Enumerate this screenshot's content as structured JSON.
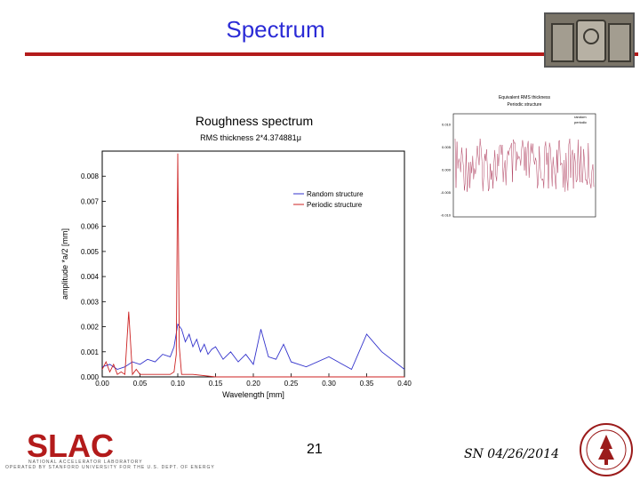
{
  "slide": {
    "title": "Spectrum",
    "page_number": "21",
    "date": "SN 04/26/2014",
    "logo_text": "SLAC",
    "logo_subtitle": "NATIONAL ACCELERATOR LABORATORY",
    "logo_subtitle2": "OPERATED BY STANFORD UNIVERSITY FOR THE U.S. DEPT. OF ENERGY"
  },
  "colors": {
    "title": "#2b2bd6",
    "rule": "#b31b1b",
    "random": "#3333cc",
    "periodic": "#cc2222",
    "slac": "#b31b1b"
  },
  "chart_data": [
    {
      "type": "line",
      "title": "Roughness spectrum",
      "subtitle": "RMS thickness 2*4.374881μ",
      "xlabel": "Wavelength [mm]",
      "ylabel": "amplitude *a/2 [mm]",
      "xlim": [
        0.0,
        0.4
      ],
      "ylim": [
        0.0,
        0.009
      ],
      "x_ticks": [
        "0.00",
        "0.05",
        "0.10",
        "0.15",
        "0.20",
        "0.25",
        "0.30",
        "0.35",
        "0.40"
      ],
      "y_ticks": [
        "0.000",
        "0.001",
        "0.002",
        "0.003",
        "0.004",
        "0.005",
        "0.006",
        "0.007",
        "0.008"
      ],
      "legend_position": "right",
      "series": [
        {
          "name": "Random structure",
          "color": "#3333cc",
          "x": [
            0.0,
            0.01,
            0.02,
            0.03,
            0.04,
            0.05,
            0.06,
            0.07,
            0.08,
            0.09,
            0.095,
            0.1,
            0.105,
            0.11,
            0.115,
            0.12,
            0.125,
            0.13,
            0.135,
            0.14,
            0.145,
            0.15,
            0.16,
            0.17,
            0.18,
            0.19,
            0.2,
            0.21,
            0.22,
            0.23,
            0.24,
            0.25,
            0.27,
            0.3,
            0.33,
            0.35,
            0.37,
            0.4
          ],
          "y": [
            0.0004,
            0.0005,
            0.0003,
            0.0004,
            0.0006,
            0.0005,
            0.0007,
            0.0006,
            0.0009,
            0.0008,
            0.0012,
            0.0021,
            0.0019,
            0.0014,
            0.0017,
            0.0012,
            0.0015,
            0.001,
            0.0013,
            0.0009,
            0.0011,
            0.0012,
            0.0007,
            0.001,
            0.0006,
            0.0009,
            0.0005,
            0.0019,
            0.0008,
            0.0007,
            0.0013,
            0.0006,
            0.0004,
            0.0008,
            0.0003,
            0.0017,
            0.001,
            0.0003
          ]
        },
        {
          "name": "Periodic structure",
          "color": "#cc2222",
          "x": [
            0.0,
            0.005,
            0.01,
            0.015,
            0.02,
            0.025,
            0.03,
            0.035,
            0.04,
            0.045,
            0.05,
            0.06,
            0.07,
            0.08,
            0.09,
            0.095,
            0.098,
            0.1,
            0.102,
            0.105,
            0.11,
            0.12,
            0.15,
            0.2,
            0.3,
            0.4
          ],
          "y": [
            0.0003,
            0.0006,
            0.0002,
            0.0005,
            0.0001,
            0.0002,
            0.0001,
            0.0026,
            0.0001,
            0.0003,
            0.0001,
            0.0001,
            0.0001,
            0.0001,
            0.0001,
            0.0002,
            0.0009,
            0.0089,
            0.0012,
            0.0001,
            0.0001,
            0.0001,
            0.0,
            0.0,
            0.0,
            0.0
          ]
        }
      ]
    },
    {
      "type": "line",
      "title": "Equivalent RMS thickness",
      "subtitle": "Periodic structure",
      "legend": [
        "random",
        "periodic"
      ],
      "y_ticks": [
        "0.010",
        "0.005",
        "0.000",
        "-0.005",
        "-0.010"
      ]
    }
  ]
}
